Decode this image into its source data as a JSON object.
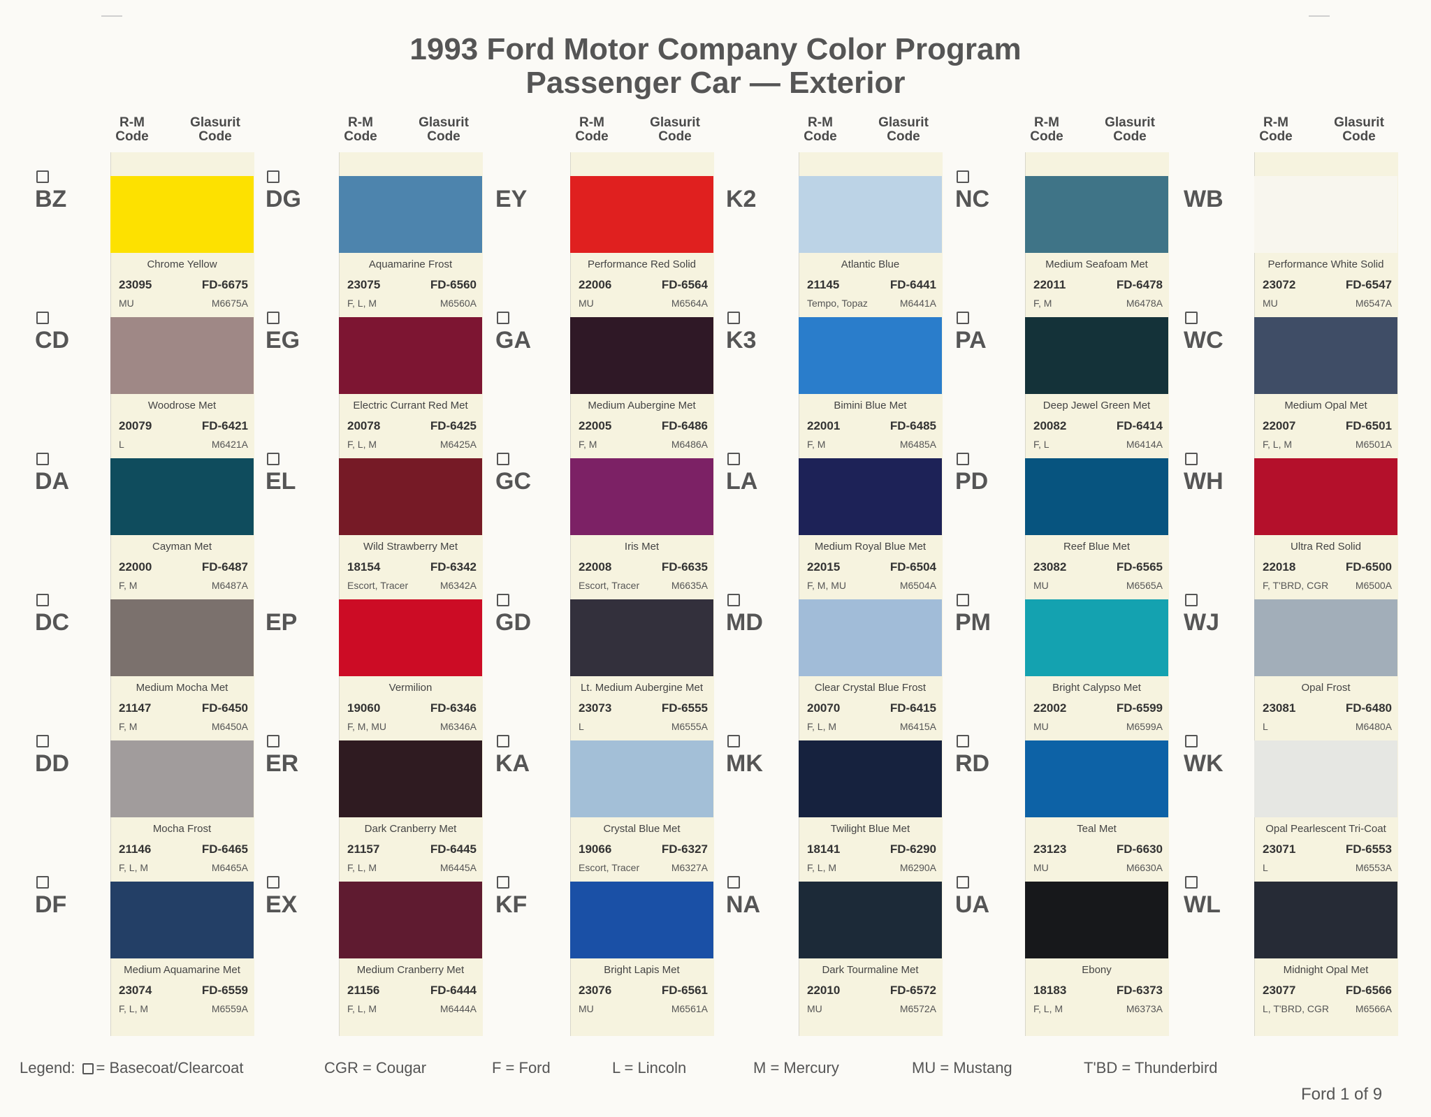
{
  "title_line1": "1993 Ford Motor Company Color Program",
  "title_line2": "Passenger Car — Exterior",
  "column_header": {
    "rm_line1": "R-M",
    "rm_line2": "Code",
    "gl_line1": "Glasurit",
    "gl_line2": "Code"
  },
  "columns": [
    {
      "colors": [
        {
          "code": "BZ",
          "basecoat": true,
          "name": "Chrome Yellow",
          "rm": "23095",
          "glasurit": "FD-6675",
          "vehicles": "MU",
          "alt": "M6675A",
          "color": "#fde100"
        },
        {
          "code": "CD",
          "basecoat": true,
          "name": "Woodrose Met",
          "rm": "20079",
          "glasurit": "FD-6421",
          "vehicles": "L",
          "alt": "M6421A",
          "color": "#9f8886"
        },
        {
          "code": "DA",
          "basecoat": true,
          "name": "Cayman Met",
          "rm": "22000",
          "glasurit": "FD-6487",
          "vehicles": "F, M",
          "alt": "M6487A",
          "color": "#0f4c5d"
        },
        {
          "code": "DC",
          "basecoat": true,
          "name": "Medium Mocha Met",
          "rm": "21147",
          "glasurit": "FD-6450",
          "vehicles": "F, M",
          "alt": "M6450A",
          "color": "#7b716d"
        },
        {
          "code": "DD",
          "basecoat": true,
          "name": "Mocha Frost",
          "rm": "21146",
          "glasurit": "FD-6465",
          "vehicles": "F, L, M",
          "alt": "M6465A",
          "color": "#a19c9c"
        },
        {
          "code": "DF",
          "basecoat": true,
          "name": "Medium Aquamarine Met",
          "rm": "23074",
          "glasurit": "FD-6559",
          "vehicles": "F, L, M",
          "alt": "M6559A",
          "color": "#233f66"
        }
      ]
    },
    {
      "colors": [
        {
          "code": "DG",
          "basecoat": true,
          "name": "Aquamarine Frost",
          "rm": "23075",
          "glasurit": "FD-6560",
          "vehicles": "F, L, M",
          "alt": "M6560A",
          "color": "#4d84ad"
        },
        {
          "code": "EG",
          "basecoat": true,
          "name": "Electric Currant Red Met",
          "rm": "20078",
          "glasurit": "FD-6425",
          "vehicles": "F, L, M",
          "alt": "M6425A",
          "color": "#7d1532"
        },
        {
          "code": "EL",
          "basecoat": true,
          "name": "Wild Strawberry Met",
          "rm": "18154",
          "glasurit": "FD-6342",
          "vehicles": "Escort, Tracer",
          "alt": "M6342A",
          "color": "#761a26"
        },
        {
          "code": "EP",
          "basecoat": false,
          "name": "Vermilion",
          "rm": "19060",
          "glasurit": "FD-6346",
          "vehicles": "F, M, MU",
          "alt": "M6346A",
          "color": "#cc0c25"
        },
        {
          "code": "ER",
          "basecoat": true,
          "name": "Dark Cranberry Met",
          "rm": "21157",
          "glasurit": "FD-6445",
          "vehicles": "F, L, M",
          "alt": "M6445A",
          "color": "#2f1b21"
        },
        {
          "code": "EX",
          "basecoat": true,
          "name": "Medium Cranberry Met",
          "rm": "21156",
          "glasurit": "FD-6444",
          "vehicles": "F, L, M",
          "alt": "M6444A",
          "color": "#5f1b30"
        }
      ]
    },
    {
      "colors": [
        {
          "code": "EY",
          "basecoat": false,
          "name": "Performance Red Solid",
          "rm": "22006",
          "glasurit": "FD-6564",
          "vehicles": "MU",
          "alt": "M6564A",
          "color": "#e0201f"
        },
        {
          "code": "GA",
          "basecoat": true,
          "name": "Medium Aubergine Met",
          "rm": "22005",
          "glasurit": "FD-6486",
          "vehicles": "F, M",
          "alt": "M6486A",
          "color": "#2f1826"
        },
        {
          "code": "GC",
          "basecoat": true,
          "name": "Iris Met",
          "rm": "22008",
          "glasurit": "FD-6635",
          "vehicles": "Escort, Tracer",
          "alt": "M6635A",
          "color": "#7c2165"
        },
        {
          "code": "GD",
          "basecoat": true,
          "name": "Lt. Medium Aubergine Met",
          "rm": "23073",
          "glasurit": "FD-6555",
          "vehicles": "L",
          "alt": "M6555A",
          "color": "#33303c"
        },
        {
          "code": "KA",
          "basecoat": true,
          "name": "Crystal Blue Met",
          "rm": "19066",
          "glasurit": "FD-6327",
          "vehicles": "Escort, Tracer",
          "alt": "M6327A",
          "color": "#a3bfd7"
        },
        {
          "code": "KF",
          "basecoat": true,
          "name": "Bright Lapis Met",
          "rm": "23076",
          "glasurit": "FD-6561",
          "vehicles": "MU",
          "alt": "M6561A",
          "color": "#1a50a6"
        }
      ]
    },
    {
      "colors": [
        {
          "code": "K2",
          "basecoat": false,
          "name": "Atlantic Blue",
          "rm": "21145",
          "glasurit": "FD-6441",
          "vehicles": "Tempo, Topaz",
          "alt": "M6441A",
          "color": "#bcd3e6"
        },
        {
          "code": "K3",
          "basecoat": true,
          "name": "Bimini Blue Met",
          "rm": "22001",
          "glasurit": "FD-6485",
          "vehicles": "F, M",
          "alt": "M6485A",
          "color": "#2a7dcb"
        },
        {
          "code": "LA",
          "basecoat": true,
          "name": "Medium Royal Blue Met",
          "rm": "22015",
          "glasurit": "FD-6504",
          "vehicles": "F, M, MU",
          "alt": "M6504A",
          "color": "#1d2257"
        },
        {
          "code": "MD",
          "basecoat": true,
          "name": "Clear Crystal Blue Frost",
          "rm": "20070",
          "glasurit": "FD-6415",
          "vehicles": "F, L, M",
          "alt": "M6415A",
          "color": "#a1bcd8"
        },
        {
          "code": "MK",
          "basecoat": true,
          "name": "Twilight Blue Met",
          "rm": "18141",
          "glasurit": "FD-6290",
          "vehicles": "F, L, M",
          "alt": "M6290A",
          "color": "#16223e"
        },
        {
          "code": "NA",
          "basecoat": true,
          "name": "Dark Tourmaline Met",
          "rm": "22010",
          "glasurit": "FD-6572",
          "vehicles": "MU",
          "alt": "M6572A",
          "color": "#1c2a38"
        }
      ]
    },
    {
      "colors": [
        {
          "code": "NC",
          "basecoat": true,
          "name": "Medium Seafoam Met",
          "rm": "22011",
          "glasurit": "FD-6478",
          "vehicles": "F, M",
          "alt": "M6478A",
          "color": "#3f7487"
        },
        {
          "code": "PA",
          "basecoat": true,
          "name": "Deep Jewel Green Met",
          "rm": "20082",
          "glasurit": "FD-6414",
          "vehicles": "F, L",
          "alt": "M6414A",
          "color": "#143239"
        },
        {
          "code": "PD",
          "basecoat": true,
          "name": "Reef Blue Met",
          "rm": "23082",
          "glasurit": "FD-6565",
          "vehicles": "MU",
          "alt": "M6565A",
          "color": "#07547f"
        },
        {
          "code": "PM",
          "basecoat": true,
          "name": "Bright Calypso Met",
          "rm": "22002",
          "glasurit": "FD-6599",
          "vehicles": "MU",
          "alt": "M6599A",
          "color": "#14a2b0"
        },
        {
          "code": "RD",
          "basecoat": true,
          "name": "Teal Met",
          "rm": "23123",
          "glasurit": "FD-6630",
          "vehicles": "MU",
          "alt": "M6630A",
          "color": "#0d62a6"
        },
        {
          "code": "UA",
          "basecoat": true,
          "name": "Ebony",
          "rm": "18183",
          "glasurit": "FD-6373",
          "vehicles": "F, L, M",
          "alt": "M6373A",
          "color": "#17181b"
        }
      ]
    },
    {
      "colors": [
        {
          "code": "WB",
          "basecoat": false,
          "name": "Performance White Solid",
          "rm": "23072",
          "glasurit": "FD-6547",
          "vehicles": "MU",
          "alt": "M6547A",
          "color": "#f8f6ee"
        },
        {
          "code": "WC",
          "basecoat": true,
          "name": "Medium Opal Met",
          "rm": "22007",
          "glasurit": "FD-6501",
          "vehicles": "F, L, M",
          "alt": "M6501A",
          "color": "#3f4d66"
        },
        {
          "code": "WH",
          "basecoat": true,
          "name": "Ultra Red Solid",
          "rm": "22018",
          "glasurit": "FD-6500",
          "vehicles": "F, T'BRD, CGR",
          "alt": "M6500A",
          "color": "#b4102b"
        },
        {
          "code": "WJ",
          "basecoat": true,
          "name": "Opal Frost",
          "rm": "23081",
          "glasurit": "FD-6480",
          "vehicles": "L",
          "alt": "M6480A",
          "color": "#a2aeb9"
        },
        {
          "code": "WK",
          "basecoat": true,
          "name": "Opal Pearlescent Tri-Coat",
          "rm": "23071",
          "glasurit": "FD-6553",
          "vehicles": "L",
          "alt": "M6553A",
          "color": "#e6e7e3"
        },
        {
          "code": "WL",
          "basecoat": true,
          "name": "Midnight Opal Met",
          "rm": "23077",
          "glasurit": "FD-6566",
          "vehicles": "L, T'BRD, CGR",
          "alt": "M6566A",
          "color": "#262b36"
        }
      ]
    }
  ],
  "legend": {
    "label": "Legend:",
    "basecoat": "= Basecoat/Clearcoat",
    "cgr": "CGR = Cougar",
    "f": "F = Ford",
    "l": "L = Lincoln",
    "m": "M = Mercury",
    "mu": "MU = Mustang",
    "tbd": "T'BD = Thunderbird"
  },
  "page": "Ford 1 of 9"
}
